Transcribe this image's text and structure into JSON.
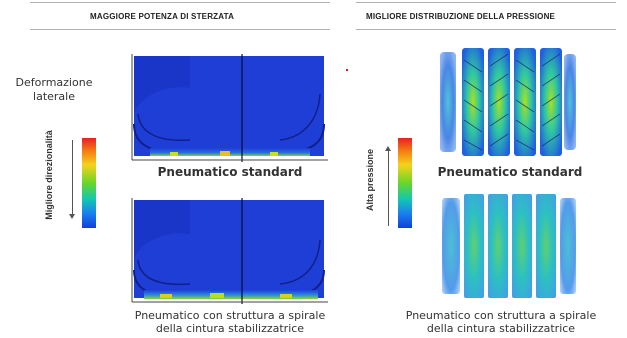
{
  "left_panel": {
    "header": "MAGGIORE POTENZA DI STERZATA",
    "axis_label": "Deformazione laterale",
    "scale_label": "Migliore direzionalità",
    "top_caption": "Pneumatico standard",
    "bottom_caption_line1": "Pneumatico con struttura a spirale",
    "bottom_caption_line2": "della cintura stabilizzatrice"
  },
  "right_panel": {
    "header": "MIGLIORE DISTRIBUZIONE DELLA PRESSIONE",
    "scale_label": "Alta pressione",
    "top_caption": "Pneumatico standard",
    "bottom_caption_line1": "Pneumatico con struttura a spirale",
    "bottom_caption_line2": "della cintura stabilizzatrice"
  },
  "colors": {
    "tire_blue": "#1f3ed6",
    "tire_dark": "#1530b0",
    "high": "#e8201e",
    "low": "#1040d8",
    "mid": "#69d628"
  }
}
